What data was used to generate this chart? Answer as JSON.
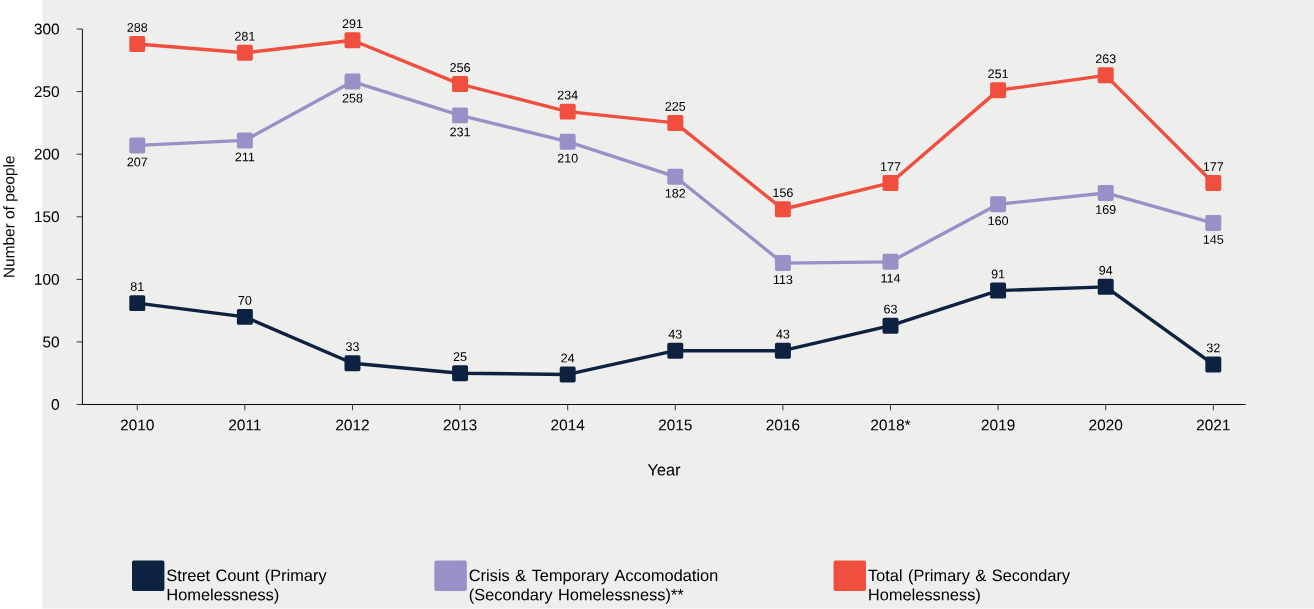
{
  "chart_data": {
    "type": "line",
    "xlabel": "Year",
    "ylabel": "Number of people",
    "categories": [
      "2010",
      "2011",
      "2012",
      "2013",
      "2014",
      "2015",
      "2016",
      "2018*",
      "2019",
      "2020",
      "2021"
    ],
    "series": [
      {
        "name": "Street Count (Primary Homelessness)",
        "color": "#0d2240",
        "values": [
          81,
          70,
          33,
          25,
          24,
          43,
          43,
          63,
          91,
          94,
          32
        ]
      },
      {
        "name": "Crisis & Temporary Accomodation (Secondary Homelessness)**",
        "color": "#9b8fc8",
        "values": [
          207,
          211,
          258,
          231,
          210,
          182,
          113,
          114,
          160,
          169,
          145
        ]
      },
      {
        "name": "Total (Primary & Secondary Homelessness)",
        "color": "#f04e3e",
        "values": [
          288,
          281,
          291,
          256,
          234,
          225,
          156,
          177,
          251,
          263,
          177
        ]
      }
    ],
    "ylim": [
      0,
      300
    ],
    "yticks": [
      0,
      50,
      100,
      150,
      200,
      250,
      300
    ],
    "data_labels": true,
    "legend": "bottom",
    "marker": "square",
    "line_style": "solid",
    "grid": false
  }
}
